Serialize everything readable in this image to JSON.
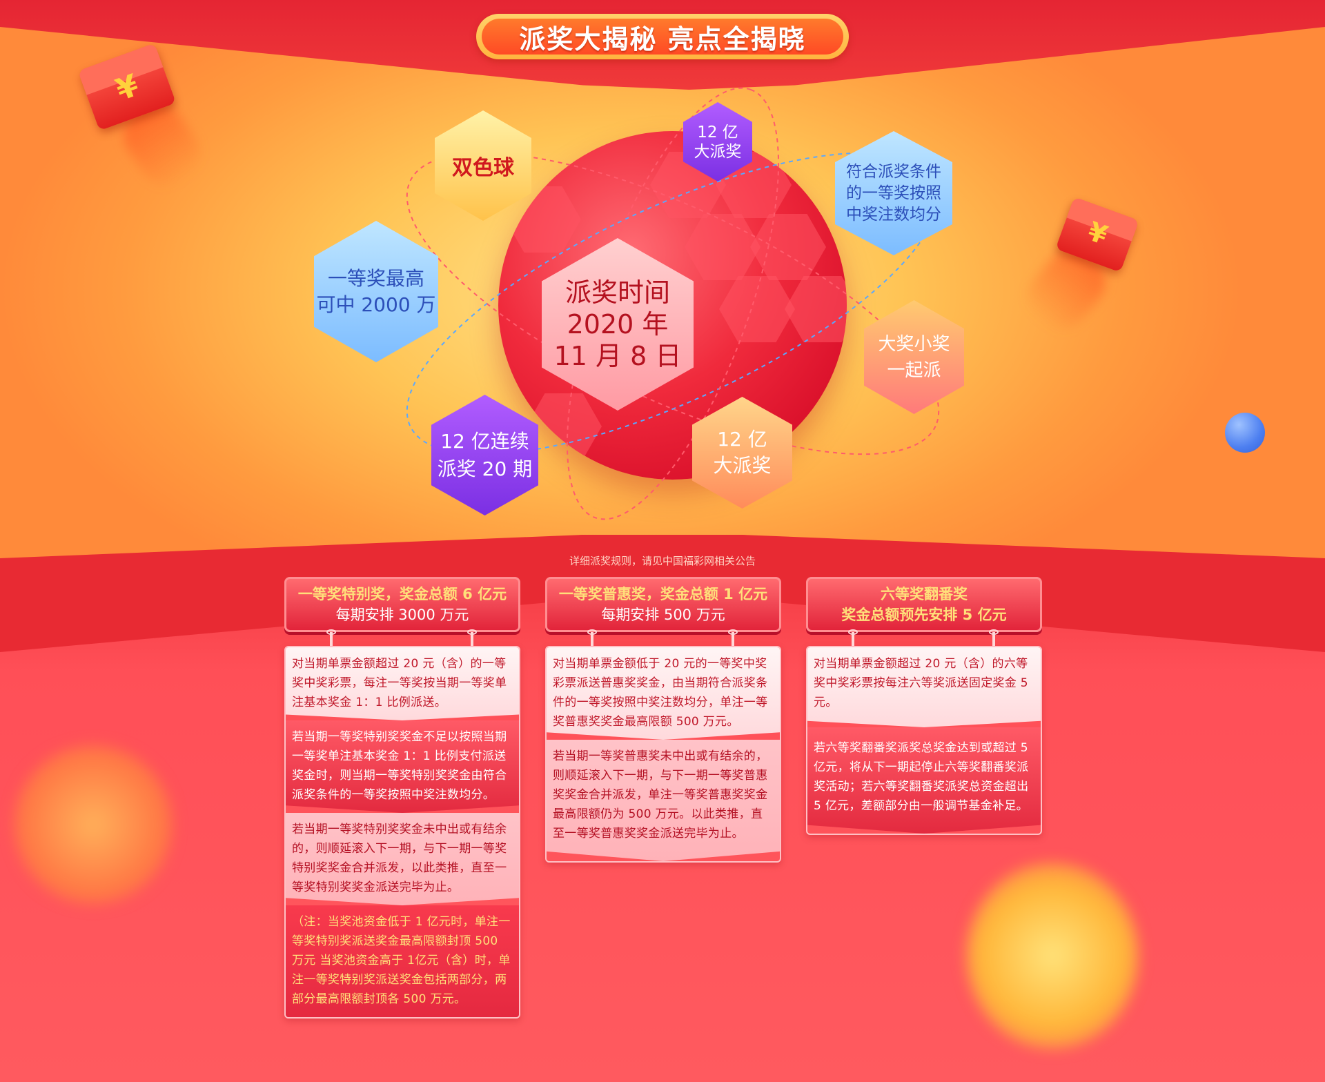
{
  "banner": {
    "title": "派奖大揭秘 亮点全揭晓"
  },
  "hexes": {
    "double_color_ball": "双色球",
    "top_prize_line1": "一等奖最高",
    "top_prize_line2": "可中 2000 万",
    "big_draw_top_line1": "12 亿",
    "big_draw_top_line2": "大派奖",
    "equal_split_line1": "符合派奖条件",
    "equal_split_line2": "的一等奖按照",
    "equal_split_line3": "中奖注数均分",
    "big_small_line1": "大奖小奖",
    "big_small_line2": "一起派",
    "big_draw_bottom_line1": "12 亿",
    "big_draw_bottom_line2": "大派奖",
    "continuous_line1": "12 亿连续",
    "continuous_line2": "派奖 20 期"
  },
  "center": {
    "line1": "派奖时间",
    "line2": "2020 年",
    "line3": "11 月 8 日"
  },
  "envelope_symbol": "¥",
  "note": "详细派奖规则，请见中国福彩网相关公告",
  "columns": [
    {
      "head1": "一等奖特别奖，奖金总额 6 亿元",
      "head2": "每期安排 3000 万元",
      "blocks": [
        "对当期单票金额超过 20 元（含）的一等奖中奖彩票，每注一等奖按当期一等奖单注基本奖金 1：1 比例派送。",
        "若当期一等奖特别奖奖金不足以按照当期一等奖单注基本奖金 1：1 比例支付派送奖金时，则当期一等奖特别奖奖金由符合派奖条件的一等奖按照中奖注数均分。",
        "若当期一等奖特别奖奖金未中出或有结余的，则顺延滚入下一期，与下一期一等奖特别奖奖金合并派发，以此类推，直至一等奖特别奖奖金派送完毕为止。",
        "（注：当奖池资金低于 1 亿元时，单注一等奖特别奖派送奖金最高限额封顶 500 万元 当奖池资金高于 1亿元（含）时，单注一等奖特别奖派送奖金包括两部分，两部分最高限额封顶各 500 万元。"
      ]
    },
    {
      "head1": "一等奖普惠奖，奖金总额 1 亿元",
      "head2": "每期安排 500 万元",
      "blocks": [
        "对当期单票金额低于 20 元的一等奖中奖彩票派送普惠奖奖金，由当期符合派奖条件的一等奖按照中奖注数均分，单注一等奖普惠奖奖金最高限额 500 万元。",
        "若当期一等奖普惠奖未中出或有结余的，则顺延滚入下一期，与下一期一等奖普惠奖奖金合并派发，单注一等奖普惠奖奖金最高限额仍为 500 万元。以此类推，直至一等奖普惠奖奖金派送完毕为止。"
      ]
    },
    {
      "head1": "六等奖翻番奖",
      "head2": "奖金总额预先安排 5 亿元",
      "blocks": [
        "对当期单票金额超过 20 元（含）的六等奖中奖彩票按每注六等奖派送固定奖金 5 元。",
        "若六等奖翻番奖派奖总奖金达到或超过 5 亿元，将从下一期起停止六等奖翻番奖派奖活动；若六等奖翻番奖派奖总资金超出 5 亿元，差额部分由一般调节基金补足。"
      ]
    }
  ]
}
